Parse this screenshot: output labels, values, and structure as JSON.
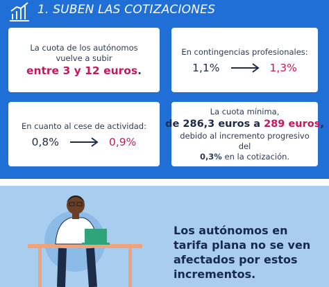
{
  "header": {
    "title": "1. SUBEN LAS COTIZACIONES"
  },
  "cards": [
    {
      "text": "La cuota de los autónomos vuelve a subir",
      "highlight": "entre 3 y 12 euros",
      "end": "."
    },
    {
      "text": "En contingencias profesionales:",
      "from": "1,1%",
      "to": "1,3%"
    },
    {
      "text": "En cuanto al cese de actividad:",
      "from": "0,8%",
      "to": "0,9%"
    },
    {
      "text": "La cuota mínima,",
      "mid": "de 286,3 euros a",
      "highlight": "289 euros",
      "end": ",",
      "note": "debido al incremento progresivo del",
      "note_highlight": "0,3%",
      "note_end": "en la cotización."
    }
  ],
  "footer": {
    "text": "Los autónomos en tarifa plana no se ven afectados por estos incrementos."
  }
}
